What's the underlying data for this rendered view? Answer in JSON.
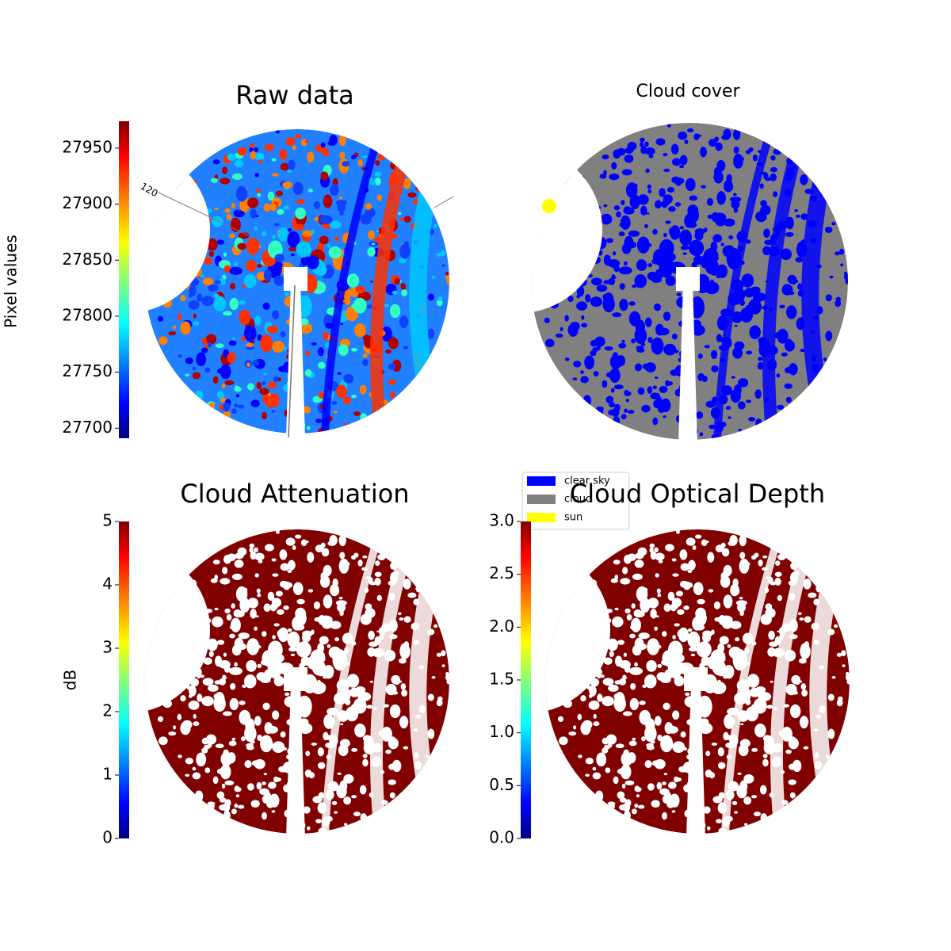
{
  "chart_data": [
    {
      "type": "image",
      "title": "Raw data",
      "colorbar_label": "Pixel values",
      "colormap": "jet",
      "ylim": [
        27691,
        27974
      ],
      "yticks": [
        27700,
        27750,
        27800,
        27850,
        27900,
        27950
      ],
      "annotation": "120"
    },
    {
      "type": "image",
      "title": "Cloud cover",
      "legend": [
        {
          "name": "clear sky",
          "color": "#0000ff"
        },
        {
          "name": "cloud",
          "color": "#808080"
        },
        {
          "name": "sun",
          "color": "#ffff00"
        }
      ]
    },
    {
      "type": "image",
      "title": "Cloud Attenuation",
      "colorbar_label": "dB",
      "colormap": "jet",
      "ylim": [
        0,
        5
      ],
      "yticks": [
        0,
        1,
        2,
        3,
        4,
        5
      ],
      "color": "#800000"
    },
    {
      "type": "image",
      "title": "Cloud Optical Depth",
      "colormap": "jet",
      "ylim": [
        0,
        3
      ],
      "yticks": [
        {
          "value": 0,
          "label": "0.0"
        },
        {
          "value": 0.5,
          "label": "0.5"
        },
        {
          "value": 1,
          "label": "1.0"
        },
        {
          "value": 1.5,
          "label": "1.5"
        },
        {
          "value": 2,
          "label": "2.0"
        },
        {
          "value": 2.5,
          "label": "2.5"
        },
        {
          "value": 3,
          "label": "3.0"
        }
      ],
      "color": "#800000"
    }
  ]
}
